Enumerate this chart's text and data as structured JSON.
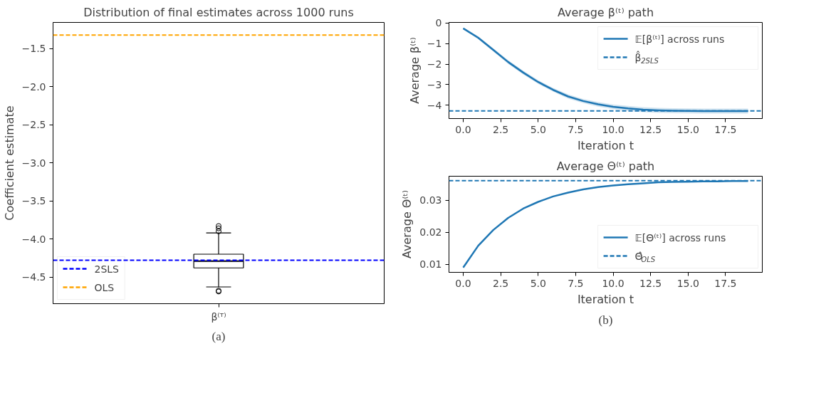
{
  "chart_data": [
    {
      "type": "box",
      "title": "Distribution of final estimates across 1000 runs",
      "ylabel": "Coefficient estimate",
      "categories": [
        "β⁽ᵀ⁾"
      ],
      "boxes": [
        {
          "low": -4.63,
          "q1": -4.38,
          "median": -4.29,
          "q3": -4.2,
          "high": -3.92,
          "outliers": [
            -3.83,
            -3.86,
            -3.9,
            -4.68,
            -4.69
          ]
        }
      ],
      "ylim": [
        -4.85,
        -1.155
      ],
      "yticks": [
        {
          "value": -4.5,
          "label": "−4.5"
        },
        {
          "value": -4.0,
          "label": "−4.0"
        },
        {
          "value": -3.5,
          "label": "−3.5"
        },
        {
          "value": -3.0,
          "label": "−3.0"
        },
        {
          "value": -2.5,
          "label": "−2.5"
        },
        {
          "value": -2.0,
          "label": "−2.0"
        },
        {
          "value": -1.5,
          "label": "−1.5"
        }
      ],
      "ref_lines": [
        {
          "axis": "y",
          "value": -4.28,
          "label": "2SLS",
          "color": "#0000ff",
          "line_style": "dashed"
        },
        {
          "axis": "y",
          "value": -1.32,
          "label": "OLS",
          "color": "#ffa500",
          "line_style": "dashed"
        }
      ],
      "legend": "bottom left",
      "annotations": [
        "(a)"
      ]
    },
    {
      "type": "line",
      "title": "Average β⁽ᵗ⁾ path",
      "xlabel": "Iteration t",
      "ylabel": "Average β⁽ᵗ⁾",
      "x": [
        0,
        1,
        2,
        3,
        4,
        5,
        6,
        7,
        8,
        9,
        10,
        11,
        12,
        13,
        14,
        15,
        16,
        17,
        18,
        19
      ],
      "series": [
        {
          "name": "𝔼[β⁽ᵗ⁾] across runs",
          "color": "#1f77b4",
          "values": [
            -0.27,
            -0.72,
            -1.31,
            -1.9,
            -2.41,
            -2.87,
            -3.25,
            -3.57,
            -3.79,
            -3.95,
            -4.07,
            -4.15,
            -4.21,
            -4.24,
            -4.26,
            -4.27,
            -4.28,
            -4.28,
            -4.28,
            -4.28
          ],
          "lower": [
            -0.32,
            -0.79,
            -1.39,
            -1.99,
            -2.5,
            -2.96,
            -3.34,
            -3.67,
            -3.89,
            -4.06,
            -4.18,
            -4.27,
            -4.33,
            -4.36,
            -4.38,
            -4.39,
            -4.4,
            -4.4,
            -4.4,
            -4.4
          ],
          "upper": [
            -0.22,
            -0.65,
            -1.23,
            -1.81,
            -2.32,
            -2.78,
            -3.16,
            -3.47,
            -3.69,
            -3.84,
            -3.96,
            -4.03,
            -4.09,
            -4.12,
            -4.14,
            -4.15,
            -4.16,
            -4.16,
            -4.16,
            -4.16
          ]
        }
      ],
      "xlim": [
        -0.95,
        19.95
      ],
      "xticks": [
        {
          "value": 0,
          "label": "0.0"
        },
        {
          "value": 2.5,
          "label": "2.5"
        },
        {
          "value": 5,
          "label": "5.0"
        },
        {
          "value": 7.5,
          "label": "7.5"
        },
        {
          "value": 10,
          "label": "10.0"
        },
        {
          "value": 12.5,
          "label": "12.5"
        },
        {
          "value": 15,
          "label": "15.0"
        },
        {
          "value": 17.5,
          "label": "17.5"
        }
      ],
      "ylim": [
        -4.64,
        0.02
      ],
      "yticks": [
        {
          "value": -4,
          "label": "−4"
        },
        {
          "value": -3,
          "label": "−3"
        },
        {
          "value": -2,
          "label": "−2"
        },
        {
          "value": -1,
          "label": "−1"
        },
        0
      ],
      "ref_lines": [
        {
          "axis": "y",
          "value": -4.27,
          "label": "β̂$_{2SLS}$",
          "color": "#1f77b4",
          "line_style": "dashed"
        }
      ],
      "legend": "top right"
    },
    {
      "type": "line",
      "title": "Average Θ⁽ᵗ⁾ path",
      "xlabel": "Iteration t",
      "ylabel": "Average Θ⁽ᵗ⁾",
      "x": [
        0,
        1,
        2,
        3,
        4,
        5,
        6,
        7,
        8,
        9,
        10,
        11,
        12,
        13,
        14,
        15,
        16,
        17,
        18,
        19
      ],
      "series": [
        {
          "name": "𝔼[Θ⁽ᵗ⁾] across runs",
          "color": "#1f77b4",
          "values": [
            0.009,
            0.0158,
            0.0207,
            0.0245,
            0.0274,
            0.0295,
            0.0312,
            0.0324,
            0.0334,
            0.0341,
            0.0346,
            0.035,
            0.0353,
            0.0356,
            0.0357,
            0.0358,
            0.0359,
            0.0359,
            0.036,
            0.036
          ]
        }
      ],
      "xlim": [
        -0.95,
        19.95
      ],
      "xticks": [
        {
          "value": 0,
          "label": "0.0"
        },
        {
          "value": 2.5,
          "label": "2.5"
        },
        {
          "value": 5,
          "label": "5.0"
        },
        {
          "value": 7.5,
          "label": "7.5"
        },
        {
          "value": 10,
          "label": "10.0"
        },
        {
          "value": 12.5,
          "label": "12.5"
        },
        {
          "value": 15,
          "label": "15.0"
        },
        {
          "value": 17.5,
          "label": "17.5"
        }
      ],
      "ylim": [
        0.0075,
        0.0375
      ],
      "yticks": [
        0.01,
        0.02,
        0.03
      ],
      "ref_lines": [
        {
          "axis": "y",
          "value": 0.0361,
          "label": "Θ̂$_{OLS}$",
          "color": "#1f77b4",
          "line_style": "dashed"
        }
      ],
      "legend": "bottom right",
      "annotations": [
        "(b)"
      ]
    }
  ]
}
